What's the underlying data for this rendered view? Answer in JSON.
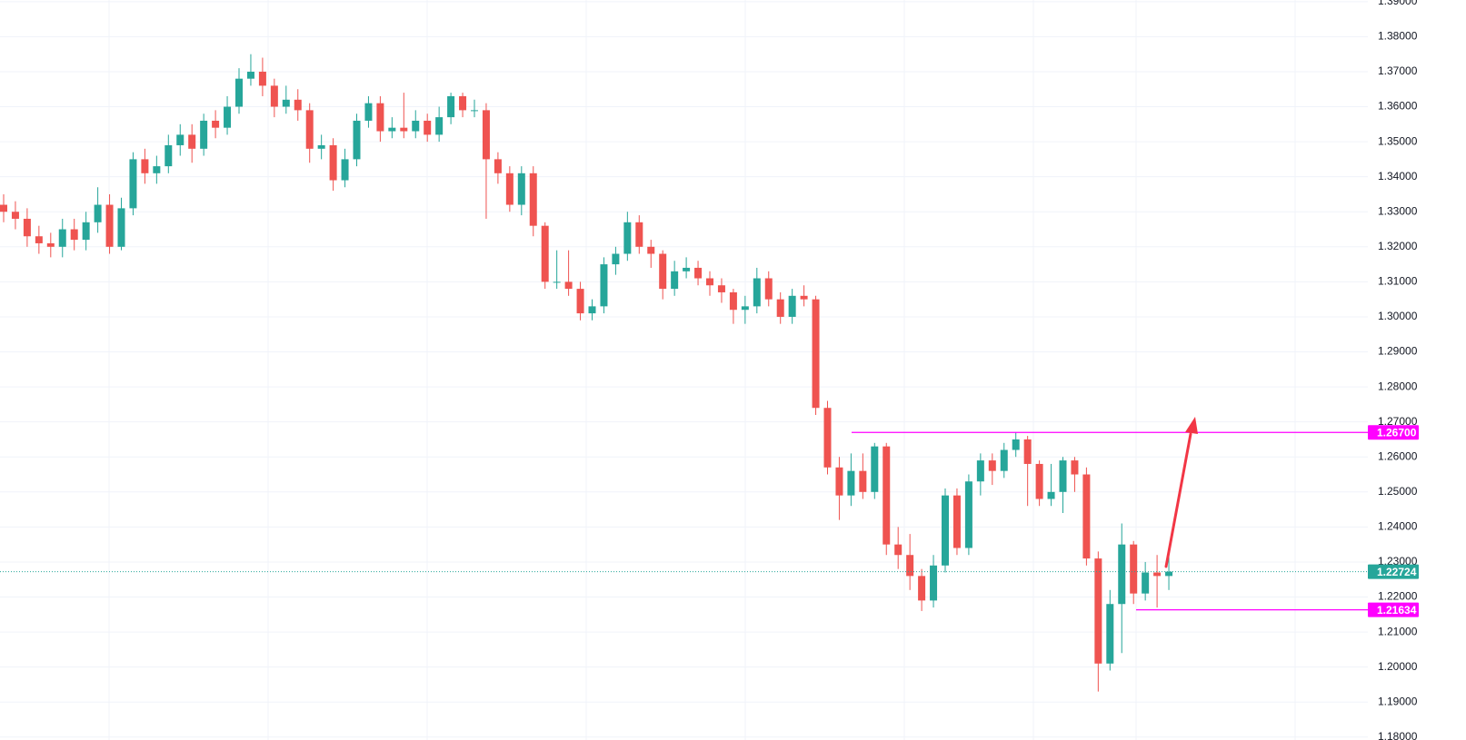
{
  "chart_data": {
    "type": "candlestick",
    "up_color": "#26a69a",
    "down_color": "#ef5350",
    "grid": true,
    "ylim": [
      1.17917,
      1.39047
    ],
    "yticks": [
      {
        "value": 1.39,
        "label": "1.39000"
      },
      {
        "value": 1.38,
        "label": "1.38000"
      },
      {
        "value": 1.37,
        "label": "1.37000"
      },
      {
        "value": 1.36,
        "label": "1.36000"
      },
      {
        "value": 1.35,
        "label": "1.35000"
      },
      {
        "value": 1.34,
        "label": "1.34000"
      },
      {
        "value": 1.33,
        "label": "1.33000"
      },
      {
        "value": 1.32,
        "label": "1.32000"
      },
      {
        "value": 1.31,
        "label": "1.31000"
      },
      {
        "value": 1.3,
        "label": "1.30000"
      },
      {
        "value": 1.29,
        "label": "1.29000"
      },
      {
        "value": 1.28,
        "label": "1.28000"
      },
      {
        "value": 1.27,
        "label": "1.27000"
      },
      {
        "value": 1.26,
        "label": "1.26000"
      },
      {
        "value": 1.25,
        "label": "1.25000"
      },
      {
        "value": 1.24,
        "label": "1.24000"
      },
      {
        "value": 1.23,
        "label": "1.23000"
      },
      {
        "value": 1.22,
        "label": "1.22000"
      },
      {
        "value": 1.21,
        "label": "1.21000"
      },
      {
        "value": 1.2,
        "label": "1.20000"
      },
      {
        "value": 1.19,
        "label": "1.19000"
      },
      {
        "value": 1.18,
        "label": "1.18000"
      }
    ],
    "open": [
      1.332,
      1.33,
      1.328,
      1.323,
      1.321,
      1.32,
      1.325,
      1.322,
      1.327,
      1.332,
      1.32,
      1.331,
      1.345,
      1.341,
      1.343,
      1.349,
      1.352,
      1.348,
      1.356,
      1.354,
      1.36,
      1.368,
      1.37,
      1.366,
      1.36,
      1.362,
      1.359,
      1.348,
      1.349,
      1.339,
      1.345,
      1.356,
      1.361,
      1.353,
      1.354,
      1.353,
      1.356,
      1.352,
      1.357,
      1.363,
      1.359,
      1.359,
      1.345,
      1.341,
      1.332,
      1.341,
      1.326,
      1.31,
      1.31,
      1.308,
      1.301,
      1.303,
      1.315,
      1.318,
      1.327,
      1.32,
      1.318,
      1.308,
      1.313,
      1.314,
      1.311,
      1.309,
      1.307,
      1.302,
      1.303,
      1.311,
      1.305,
      1.3,
      1.306,
      1.305,
      1.274,
      1.257,
      1.249,
      1.256,
      1.25,
      1.263,
      1.235,
      1.232,
      1.226,
      1.219,
      1.229,
      1.249,
      1.234,
      1.253,
      1.259,
      1.256,
      1.262,
      1.265,
      1.258,
      1.248,
      1.25,
      1.259,
      1.255,
      1.231,
      1.201,
      1.218,
      1.235,
      1.221,
      1.227,
      1.226
    ],
    "high": [
      1.335,
      1.333,
      1.331,
      1.326,
      1.324,
      1.328,
      1.328,
      1.33,
      1.337,
      1.335,
      1.334,
      1.347,
      1.348,
      1.346,
      1.352,
      1.355,
      1.355,
      1.358,
      1.359,
      1.363,
      1.371,
      1.375,
      1.374,
      1.368,
      1.366,
      1.365,
      1.361,
      1.352,
      1.351,
      1.348,
      1.358,
      1.363,
      1.363,
      1.357,
      1.364,
      1.359,
      1.358,
      1.36,
      1.364,
      1.364,
      1.362,
      1.361,
      1.347,
      1.343,
      1.343,
      1.343,
      1.327,
      1.319,
      1.319,
      1.31,
      1.305,
      1.317,
      1.32,
      1.33,
      1.329,
      1.322,
      1.319,
      1.316,
      1.317,
      1.316,
      1.313,
      1.311,
      1.308,
      1.306,
      1.314,
      1.313,
      1.307,
      1.308,
      1.309,
      1.306,
      1.276,
      1.26,
      1.261,
      1.261,
      1.264,
      1.264,
      1.24,
      1.238,
      1.228,
      1.232,
      1.251,
      1.251,
      1.255,
      1.261,
      1.261,
      1.264,
      1.267,
      1.266,
      1.259,
      1.258,
      1.26,
      1.26,
      1.257,
      1.233,
      1.222,
      1.241,
      1.236,
      1.23,
      1.232,
      1.232
    ],
    "low": [
      1.327,
      1.325,
      1.32,
      1.318,
      1.317,
      1.317,
      1.319,
      1.319,
      1.324,
      1.318,
      1.319,
      1.329,
      1.338,
      1.338,
      1.341,
      1.346,
      1.344,
      1.346,
      1.351,
      1.352,
      1.358,
      1.366,
      1.363,
      1.357,
      1.358,
      1.356,
      1.344,
      1.345,
      1.336,
      1.337,
      1.343,
      1.354,
      1.35,
      1.351,
      1.351,
      1.351,
      1.35,
      1.35,
      1.355,
      1.357,
      1.357,
      1.328,
      1.338,
      1.33,
      1.329,
      1.323,
      1.308,
      1.308,
      1.306,
      1.299,
      1.299,
      1.301,
      1.312,
      1.316,
      1.318,
      1.314,
      1.305,
      1.306,
      1.311,
      1.309,
      1.306,
      1.304,
      1.298,
      1.298,
      1.301,
      1.303,
      1.298,
      1.298,
      1.303,
      1.272,
      1.255,
      1.242,
      1.246,
      1.248,
      1.248,
      1.232,
      1.228,
      1.222,
      1.216,
      1.217,
      1.227,
      1.232,
      1.232,
      1.249,
      1.252,
      1.254,
      1.26,
      1.246,
      1.246,
      1.246,
      1.244,
      1.25,
      1.229,
      1.193,
      1.199,
      1.204,
      1.218,
      1.219,
      1.217,
      1.222
    ],
    "close": [
      1.33,
      1.328,
      1.323,
      1.321,
      1.32,
      1.325,
      1.322,
      1.327,
      1.332,
      1.32,
      1.331,
      1.345,
      1.341,
      1.343,
      1.349,
      1.352,
      1.348,
      1.356,
      1.354,
      1.36,
      1.368,
      1.37,
      1.366,
      1.36,
      1.362,
      1.359,
      1.348,
      1.349,
      1.339,
      1.345,
      1.356,
      1.361,
      1.353,
      1.354,
      1.353,
      1.356,
      1.352,
      1.357,
      1.363,
      1.359,
      1.359,
      1.345,
      1.341,
      1.332,
      1.341,
      1.326,
      1.31,
      1.31,
      1.308,
      1.301,
      1.303,
      1.315,
      1.318,
      1.327,
      1.32,
      1.318,
      1.308,
      1.313,
      1.314,
      1.311,
      1.309,
      1.307,
      1.302,
      1.303,
      1.311,
      1.305,
      1.3,
      1.306,
      1.305,
      1.274,
      1.257,
      1.249,
      1.256,
      1.25,
      1.263,
      1.235,
      1.232,
      1.226,
      1.219,
      1.229,
      1.249,
      1.234,
      1.253,
      1.259,
      1.256,
      1.262,
      1.265,
      1.258,
      1.248,
      1.25,
      1.259,
      1.255,
      1.231,
      1.201,
      1.218,
      1.235,
      1.221,
      1.227,
      1.226,
      1.22724
    ],
    "last_price": {
      "value": 1.22724,
      "label": "1.22724",
      "color": "#26a69a"
    },
    "levels": [
      {
        "value": 1.267,
        "label": "1.26700",
        "color": "#ff00ff"
      },
      {
        "value": 1.21634,
        "label": "1.21634",
        "color": "#ff00ff"
      }
    ]
  }
}
